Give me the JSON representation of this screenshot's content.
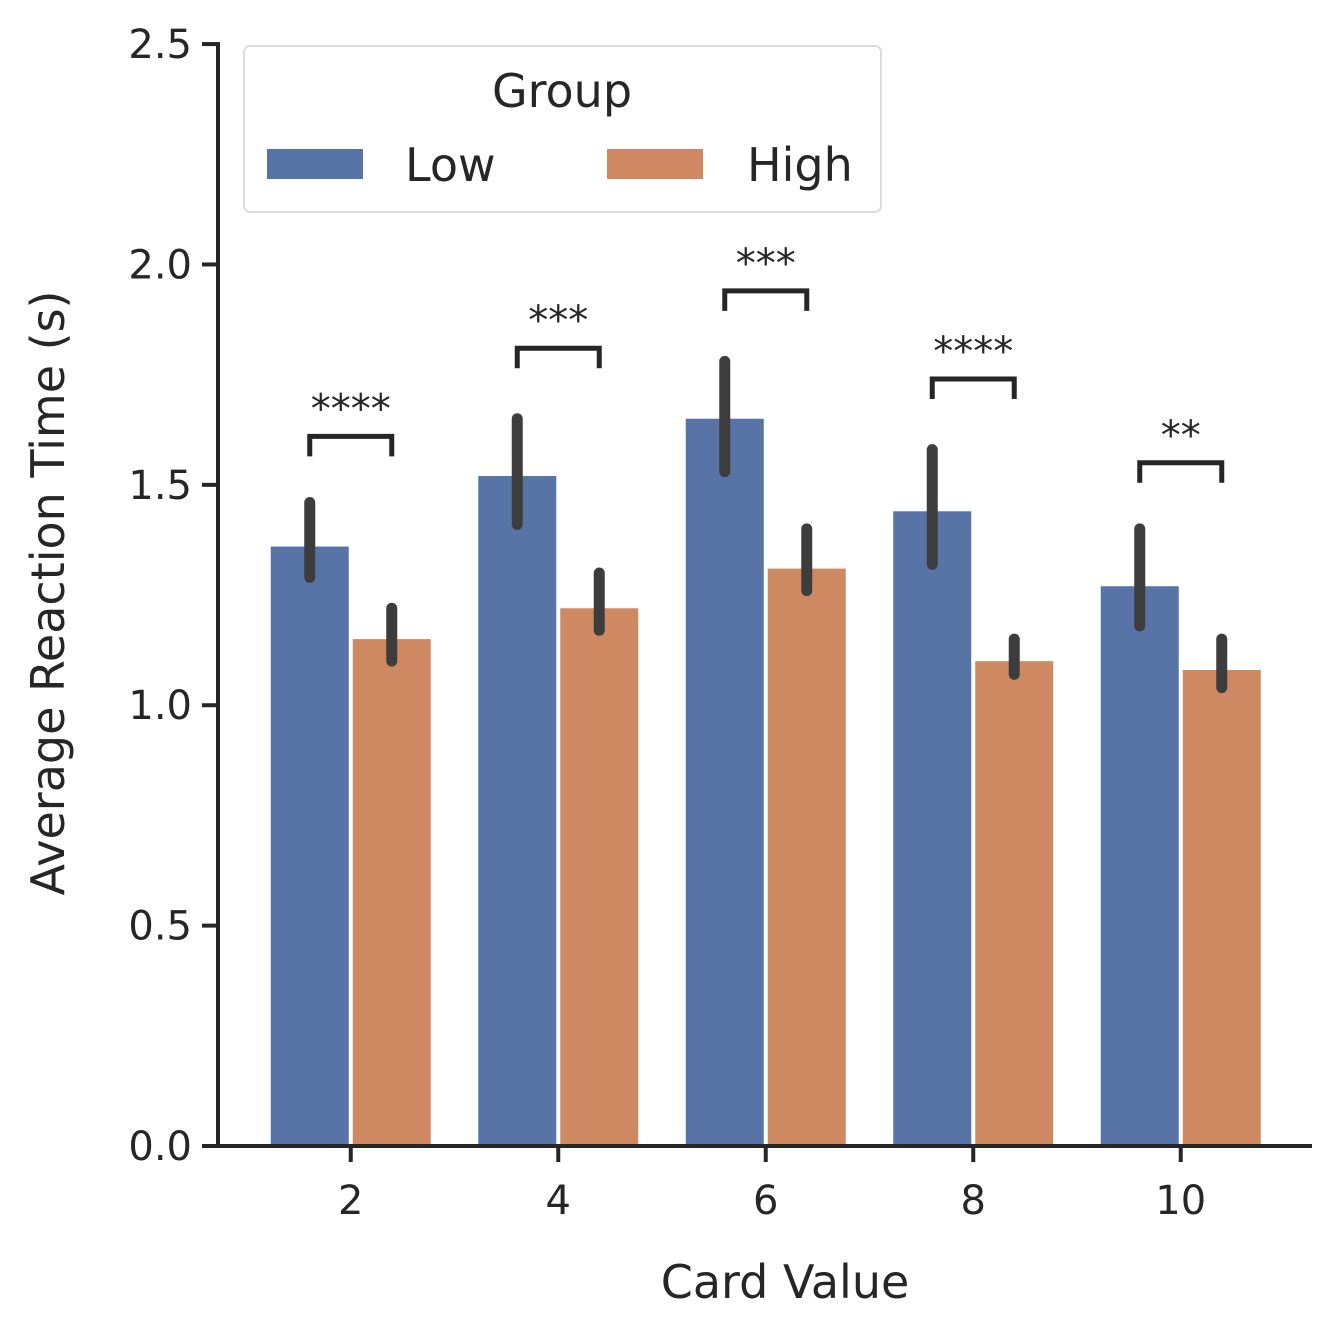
{
  "chart_data": {
    "type": "bar",
    "xlabel": "Card Value",
    "ylabel": "Average Reaction Time (s)",
    "ylim": [
      0,
      2.6
    ],
    "yticks": [
      "0.0",
      "0.5",
      "1.0",
      "1.5",
      "2.0",
      "2.5"
    ],
    "categories": [
      "2",
      "4",
      "6",
      "8",
      "10"
    ],
    "legend": {
      "title": "Group",
      "position": "top-left"
    },
    "series": [
      {
        "name": "Low",
        "color": "#5874a6",
        "values": [
          1.36,
          1.52,
          1.65,
          1.44,
          1.27
        ],
        "err_low": [
          1.29,
          1.41,
          1.53,
          1.32,
          1.18
        ],
        "err_high": [
          1.46,
          1.65,
          1.78,
          1.58,
          1.4
        ]
      },
      {
        "name": "High",
        "color": "#ce8962",
        "values": [
          1.15,
          1.22,
          1.31,
          1.1,
          1.08
        ],
        "err_low": [
          1.1,
          1.17,
          1.26,
          1.07,
          1.04
        ],
        "err_high": [
          1.22,
          1.3,
          1.4,
          1.15,
          1.15
        ]
      }
    ],
    "significance": [
      {
        "category": "2",
        "label": "****",
        "y": 1.61
      },
      {
        "category": "4",
        "label": "***",
        "y": 1.81
      },
      {
        "category": "6",
        "label": "***",
        "y": 1.94
      },
      {
        "category": "8",
        "label": "****",
        "y": 1.74
      },
      {
        "category": "10",
        "label": "**",
        "y": 1.55
      }
    ],
    "grid": false
  }
}
